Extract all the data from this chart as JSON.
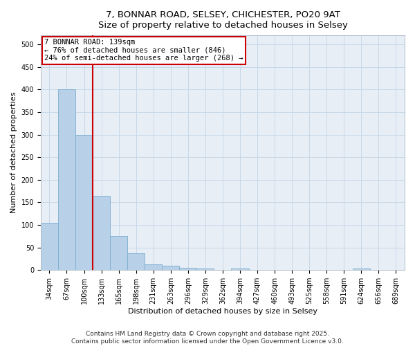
{
  "title_line1": "7, BONNAR ROAD, SELSEY, CHICHESTER, PO20 9AT",
  "title_line2": "Size of property relative to detached houses in Selsey",
  "xlabel": "Distribution of detached houses by size in Selsey",
  "ylabel": "Number of detached properties",
  "bar_labels": [
    "34sqm",
    "67sqm",
    "100sqm",
    "133sqm",
    "165sqm",
    "198sqm",
    "231sqm",
    "263sqm",
    "296sqm",
    "329sqm",
    "362sqm",
    "394sqm",
    "427sqm",
    "460sqm",
    "493sqm",
    "525sqm",
    "558sqm",
    "591sqm",
    "624sqm",
    "656sqm",
    "689sqm"
  ],
  "bar_values": [
    105,
    400,
    300,
    165,
    75,
    37,
    13,
    10,
    5,
    4,
    0,
    3,
    0,
    0,
    0,
    0,
    0,
    0,
    3,
    0,
    0
  ],
  "bar_color": "#b8d0e8",
  "bar_edge_color": "#7aaed0",
  "grid_color": "#c8d8e8",
  "background_color": "#e8eef6",
  "vline_x_idx": 3,
  "vline_color": "#cc0000",
  "annotation_line1": "7 BONNAR ROAD: 139sqm",
  "annotation_line2": "← 76% of detached houses are smaller (846)",
  "annotation_line3": "24% of semi-detached houses are larger (268) →",
  "annotation_box_color": "#ffffff",
  "annotation_box_edge_color": "#cc0000",
  "footer_line1": "Contains HM Land Registry data © Crown copyright and database right 2025.",
  "footer_line2": "Contains public sector information licensed under the Open Government Licence v3.0.",
  "ylim": [
    0,
    520
  ],
  "yticks": [
    0,
    50,
    100,
    150,
    200,
    250,
    300,
    350,
    400,
    450,
    500
  ],
  "title_fontsize": 9.5,
  "axis_label_fontsize": 8,
  "tick_fontsize": 7,
  "annotation_fontsize": 7.5,
  "footer_fontsize": 6.5
}
